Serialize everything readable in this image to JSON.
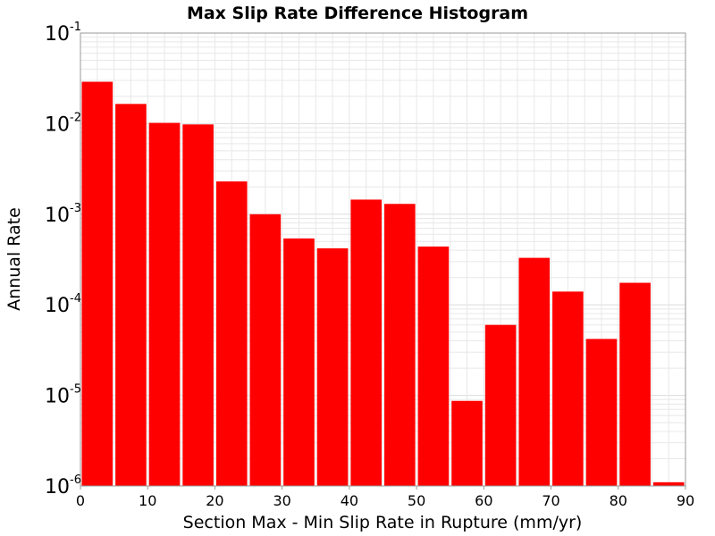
{
  "chart_data": {
    "type": "bar",
    "title": "Max Slip Rate Difference Histogram",
    "xlabel": "Section Max - Min Slip Rate in Rupture (mm/yr)",
    "ylabel": "Annual Rate",
    "xlim": [
      0,
      90
    ],
    "ylim": [
      1e-06,
      0.1
    ],
    "yscale": "log",
    "bin_width": 5,
    "x_ticks": [
      0,
      10,
      20,
      30,
      40,
      50,
      60,
      70,
      80,
      90
    ],
    "y_ticks": [
      {
        "value": 1e-06,
        "base": "10",
        "exp": "-6"
      },
      {
        "value": 1e-05,
        "base": "10",
        "exp": "-5"
      },
      {
        "value": 0.0001,
        "base": "10",
        "exp": "-4"
      },
      {
        "value": 0.001,
        "base": "10",
        "exp": "-3"
      },
      {
        "value": 0.01,
        "base": "10",
        "exp": "-2"
      },
      {
        "value": 0.1,
        "base": "10",
        "exp": "-1"
      }
    ],
    "bins": [
      {
        "x_start": 0,
        "x_end": 5,
        "value": 0.029
      },
      {
        "x_start": 5,
        "x_end": 10,
        "value": 0.0165
      },
      {
        "x_start": 10,
        "x_end": 15,
        "value": 0.0102
      },
      {
        "x_start": 15,
        "x_end": 20,
        "value": 0.0098
      },
      {
        "x_start": 20,
        "x_end": 25,
        "value": 0.0023
      },
      {
        "x_start": 25,
        "x_end": 30,
        "value": 0.001
      },
      {
        "x_start": 30,
        "x_end": 35,
        "value": 0.00054
      },
      {
        "x_start": 35,
        "x_end": 40,
        "value": 0.00042
      },
      {
        "x_start": 40,
        "x_end": 45,
        "value": 0.00145
      },
      {
        "x_start": 45,
        "x_end": 50,
        "value": 0.0013
      },
      {
        "x_start": 50,
        "x_end": 55,
        "value": 0.00044
      },
      {
        "x_start": 55,
        "x_end": 60,
        "value": 8.7e-06
      },
      {
        "x_start": 60,
        "x_end": 65,
        "value": 6e-05
      },
      {
        "x_start": 65,
        "x_end": 70,
        "value": 0.00033
      },
      {
        "x_start": 70,
        "x_end": 75,
        "value": 0.00014
      },
      {
        "x_start": 75,
        "x_end": 80,
        "value": 4.2e-05
      },
      {
        "x_start": 80,
        "x_end": 85,
        "value": 0.000175
      },
      {
        "x_start": 85,
        "x_end": 90,
        "value": 1.1e-06
      }
    ],
    "bar_color": "#ff0000",
    "grid": true,
    "grid_color": "#e8e8e8",
    "legend": "none"
  }
}
